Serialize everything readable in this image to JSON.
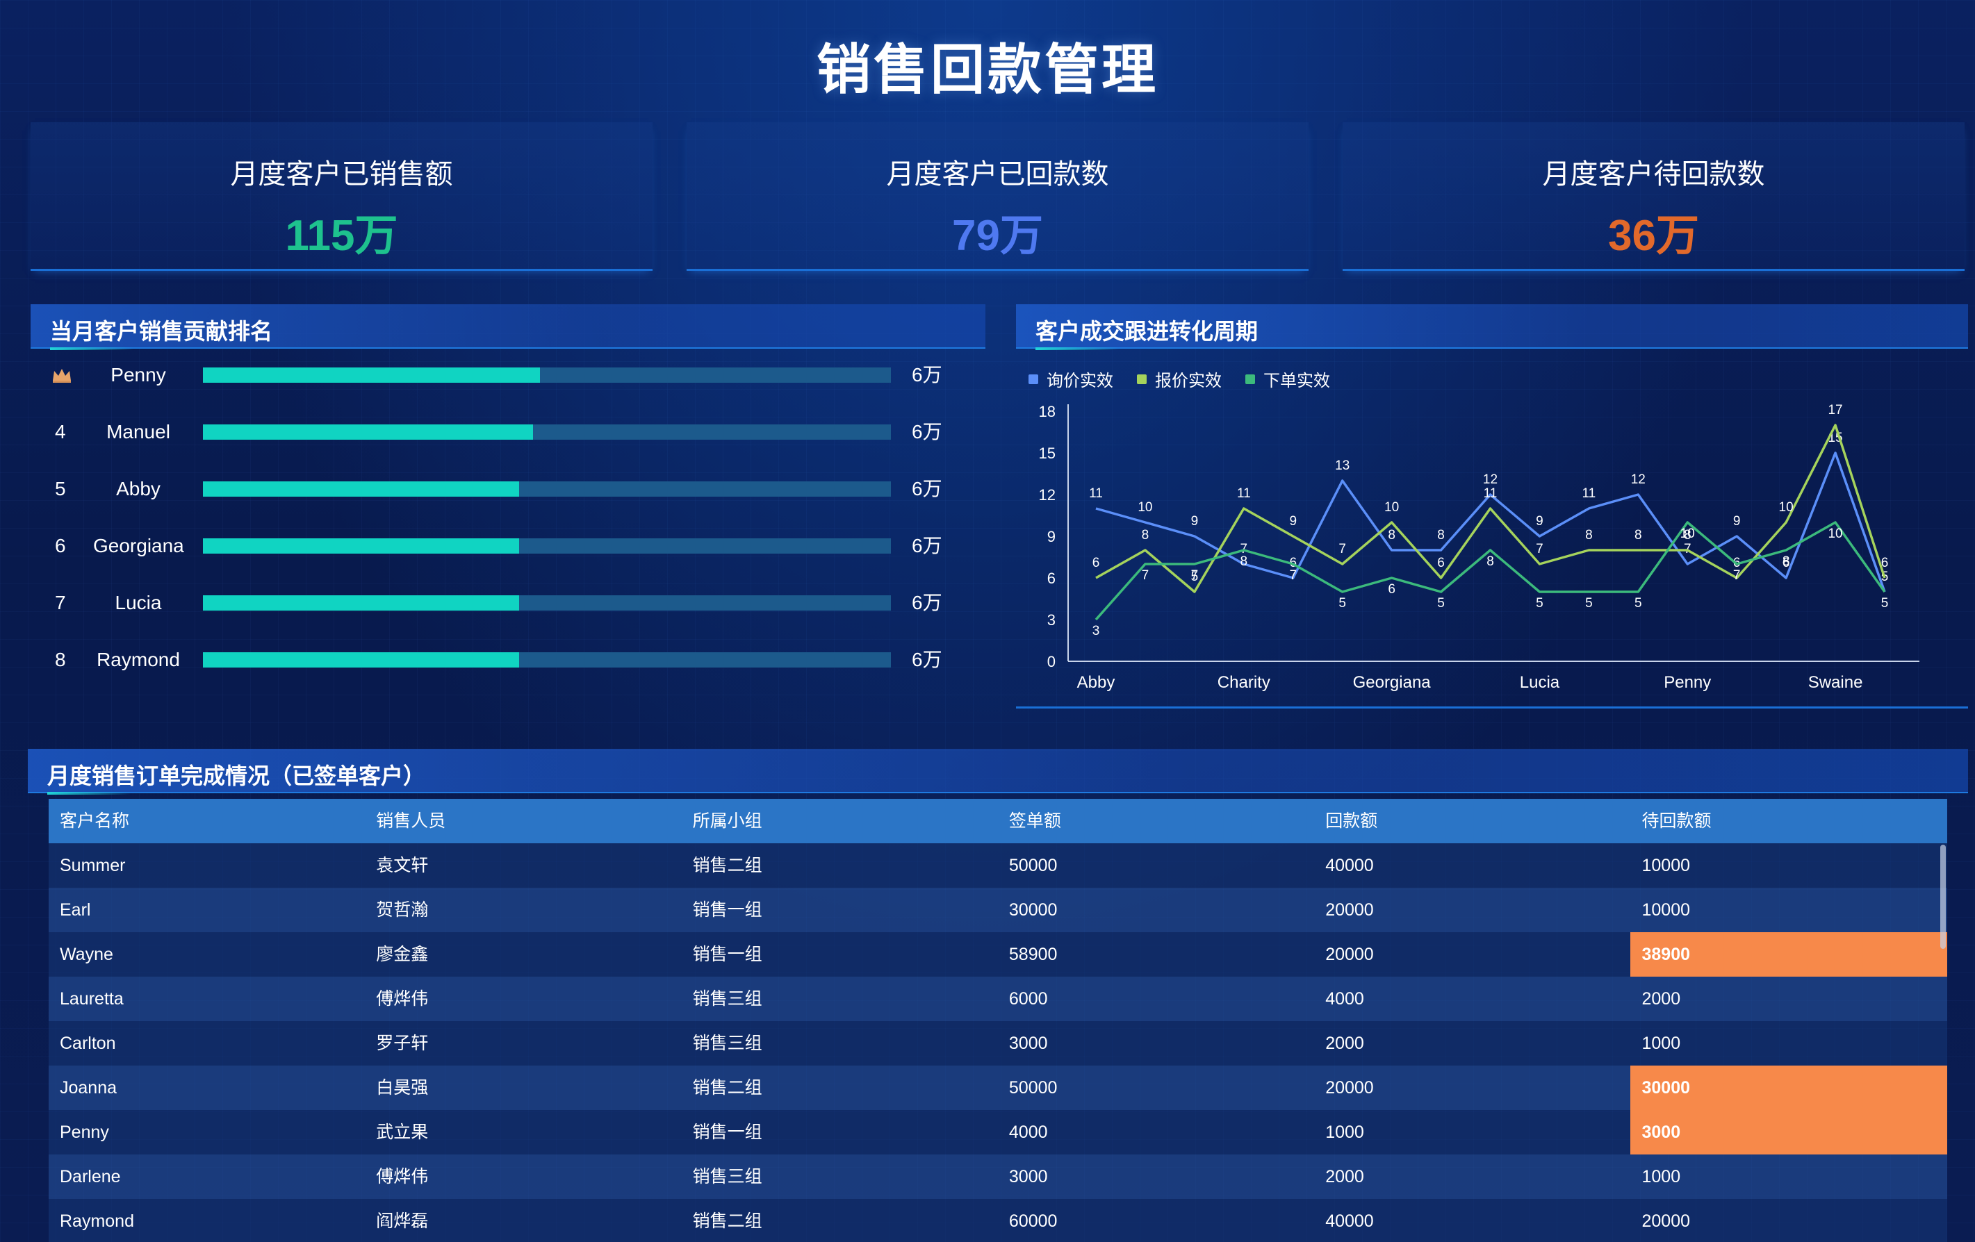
{
  "page": {
    "title": "销售回款管理"
  },
  "kpis": [
    {
      "label": "月度客户已销售额",
      "value": "115万",
      "color": "#1ec28e"
    },
    {
      "label": "月度客户已回款数",
      "value": "79万",
      "color": "#4f79f0"
    },
    {
      "label": "月度客户待回款数",
      "value": "36万",
      "color": "#e2692b"
    }
  ],
  "ranking": {
    "title": "当月客户销售贡献排名",
    "items": [
      {
        "rank": "",
        "crown": true,
        "name": "Penny",
        "value_label": "6万",
        "fill": 0.49
      },
      {
        "rank": "4",
        "name": "Manuel",
        "value_label": "6万",
        "fill": 0.48
      },
      {
        "rank": "5",
        "name": "Abby",
        "value_label": "6万",
        "fill": 0.46
      },
      {
        "rank": "6",
        "name": "Georgiana",
        "value_label": "6万",
        "fill": 0.46
      },
      {
        "rank": "7",
        "name": "Lucia",
        "value_label": "6万",
        "fill": 0.46
      },
      {
        "rank": "8",
        "name": "Raymond",
        "value_label": "6万",
        "fill": 0.46
      }
    ]
  },
  "cycle": {
    "title": "客户成交跟进转化周期"
  },
  "chart_data": {
    "type": "line",
    "title": "",
    "x_tick_labels": [
      "Abby",
      "Charity",
      "Georgiana",
      "Lucia",
      "Penny",
      "Swaine"
    ],
    "x_tick_indices": [
      0,
      3,
      6,
      9,
      12,
      15
    ],
    "n_points": 17,
    "ylim": [
      0,
      18
    ],
    "yticks": [
      0,
      3,
      6,
      9,
      12,
      15,
      18
    ],
    "legend_position": "top-left",
    "series": [
      {
        "name": "询价实效",
        "color": "#5b8ff9",
        "values": [
          11,
          10,
          9,
          7,
          6,
          13,
          8,
          8,
          12,
          9,
          11,
          12,
          7,
          9,
          6,
          15,
          5
        ]
      },
      {
        "name": "报价实效",
        "color": "#a5d35c",
        "values": [
          6,
          8,
          5,
          11,
          9,
          7,
          10,
          6,
          11,
          7,
          8,
          8,
          8,
          6,
          10,
          17,
          6
        ]
      },
      {
        "name": "下单实效",
        "color": "#3cba7c",
        "values": [
          3,
          7,
          7,
          8,
          7,
          5,
          6,
          5,
          8,
          5,
          5,
          5,
          10,
          7,
          8,
          10,
          5
        ]
      }
    ]
  },
  "orders": {
    "title": "月度销售订单完成情况（已签单客户）",
    "columns": [
      "客户名称",
      "销售人员",
      "所属小组",
      "签单额",
      "回款额",
      "待回款额"
    ],
    "rows": [
      [
        "Summer",
        "袁文轩",
        "销售二组",
        "50000",
        "40000",
        "10000"
      ],
      [
        "Earl",
        "贺哲瀚",
        "销售一组",
        "30000",
        "20000",
        "10000"
      ],
      [
        "Wayne",
        "廖金鑫",
        "销售一组",
        "58900",
        "20000",
        "38900"
      ],
      [
        "Lauretta",
        "傅烨伟",
        "销售三组",
        "6000",
        "4000",
        "2000"
      ],
      [
        "Carlton",
        "罗子轩",
        "销售三组",
        "3000",
        "2000",
        "1000"
      ],
      [
        "Joanna",
        "白昊强",
        "销售二组",
        "50000",
        "20000",
        "30000"
      ],
      [
        "Penny",
        "武立果",
        "销售一组",
        "4000",
        "1000",
        "3000"
      ],
      [
        "Darlene",
        "傅烨伟",
        "销售三组",
        "3000",
        "2000",
        "1000"
      ],
      [
        "Raymond",
        "阎烨磊",
        "销售二组",
        "60000",
        "40000",
        "20000"
      ]
    ],
    "highlight_rows": [
      2,
      5,
      6
    ],
    "highlight_color": "#f7894a"
  }
}
